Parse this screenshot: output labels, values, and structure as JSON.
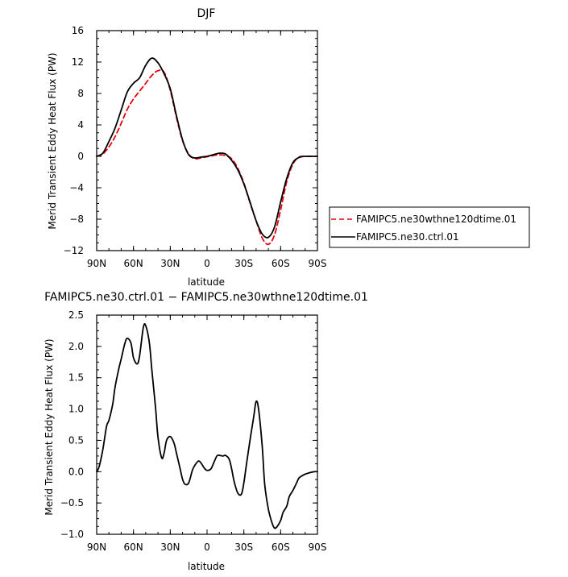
{
  "chart_data": [
    {
      "type": "line",
      "title": "DJF",
      "xlabel": "latitude",
      "ylabel": "Merid Transient Eddy Heat Flux (PW)",
      "xlim": [
        90,
        -90
      ],
      "ylim": [
        -12,
        16
      ],
      "xticks": [
        90,
        60,
        30,
        0,
        -30,
        -60,
        -90
      ],
      "xtick_labels": [
        "90N",
        "60N",
        "30N",
        "0",
        "30S",
        "60S",
        "90S"
      ],
      "yticks": [
        -12,
        -8,
        -4,
        0,
        4,
        8,
        12,
        16
      ],
      "ytick_labels": [
        "−12",
        "−8",
        "−4",
        "0",
        "4",
        "8",
        "12",
        "16"
      ],
      "legend_position": "right",
      "series": [
        {
          "name": "FAMIPC5.ne30wthne120dtime.01",
          "color": "#e8000b",
          "dash": "dashed",
          "x": [
            90,
            85,
            80,
            75,
            70,
            65,
            60,
            55,
            50,
            45,
            40,
            35,
            30,
            25,
            20,
            15,
            10,
            5,
            0,
            -5,
            -10,
            -15,
            -20,
            -25,
            -30,
            -35,
            -40,
            -45,
            -50,
            -55,
            -60,
            -65,
            -70,
            -75,
            -80,
            -85,
            -90
          ],
          "y": [
            0.0,
            0.3,
            1.2,
            2.5,
            4.2,
            6.0,
            7.3,
            8.3,
            9.3,
            10.3,
            10.9,
            10.7,
            8.4,
            5.0,
            2.0,
            0.3,
            -0.3,
            -0.2,
            -0.05,
            0.1,
            0.2,
            0.1,
            -0.3,
            -1.5,
            -3.4,
            -5.9,
            -8.2,
            -10.4,
            -11.2,
            -10.0,
            -6.8,
            -3.2,
            -1.0,
            -0.1,
            0.0,
            0.0,
            0.0
          ]
        },
        {
          "name": "FAMIPC5.ne30.ctrl.01",
          "color": "#000000",
          "dash": "solid",
          "x": [
            90,
            85,
            80,
            75,
            70,
            65,
            60,
            55,
            50,
            45,
            40,
            35,
            30,
            25,
            20,
            15,
            10,
            5,
            0,
            -5,
            -10,
            -15,
            -20,
            -25,
            -30,
            -35,
            -40,
            -45,
            -50,
            -55,
            -60,
            -65,
            -70,
            -75,
            -80,
            -85,
            -90
          ],
          "y": [
            0.0,
            0.4,
            1.9,
            3.6,
            5.9,
            8.2,
            9.3,
            10.0,
            11.6,
            12.5,
            11.9,
            10.5,
            8.6,
            5.2,
            2.1,
            0.2,
            -0.2,
            -0.1,
            0.0,
            0.2,
            0.4,
            0.3,
            -0.5,
            -1.7,
            -3.5,
            -5.8,
            -8.2,
            -9.9,
            -10.3,
            -9.0,
            -5.8,
            -2.8,
            -0.8,
            -0.15,
            0.0,
            0.0,
            0.0
          ]
        }
      ]
    },
    {
      "type": "line",
      "title": "FAMIPC5.ne30.ctrl.01 − FAMIPC5.ne30wthne120dtime.01",
      "xlabel": "latitude",
      "ylabel": "Merid Transient Eddy Heat Flux (PW)",
      "xlim": [
        90,
        -90
      ],
      "ylim": [
        -1.0,
        2.5
      ],
      "xticks": [
        90,
        60,
        30,
        0,
        -30,
        -60,
        -90
      ],
      "xtick_labels": [
        "90N",
        "60N",
        "30N",
        "0",
        "30S",
        "60S",
        "90S"
      ],
      "yticks": [
        -1.0,
        -0.5,
        0.0,
        0.5,
        1.0,
        1.5,
        2.0,
        2.5
      ],
      "ytick_labels": [
        "−1.0",
        "−0.5",
        "0.0",
        "0.5",
        "1.0",
        "1.5",
        "2.0",
        "2.5"
      ],
      "series": [
        {
          "color": "#000000",
          "dash": "solid",
          "x": [
            90,
            88,
            85,
            82,
            80,
            77,
            75,
            72,
            70,
            67,
            65,
            62,
            60,
            57,
            55,
            52,
            50,
            47,
            45,
            42,
            40,
            37,
            35,
            33,
            30,
            27,
            25,
            22,
            20,
            18,
            15,
            12,
            10,
            7,
            5,
            2,
            0,
            -3,
            -5,
            -8,
            -10,
            -13,
            -15,
            -18,
            -20,
            -22,
            -25,
            -28,
            -30,
            -32,
            -35,
            -38,
            -40,
            -42,
            -45,
            -47,
            -50,
            -53,
            -55,
            -57,
            -60,
            -62,
            -65,
            -67,
            -70,
            -73,
            -75,
            -78,
            -80,
            -83,
            -85,
            -88,
            -90
          ],
          "y": [
            0.0,
            0.08,
            0.35,
            0.72,
            0.82,
            1.07,
            1.35,
            1.64,
            1.8,
            2.05,
            2.13,
            2.05,
            1.82,
            1.72,
            1.85,
            2.3,
            2.33,
            2.05,
            1.62,
            1.02,
            0.55,
            0.22,
            0.3,
            0.5,
            0.56,
            0.46,
            0.3,
            0.05,
            -0.12,
            -0.2,
            -0.18,
            0.02,
            0.1,
            0.17,
            0.14,
            0.05,
            0.02,
            0.04,
            0.12,
            0.25,
            0.26,
            0.25,
            0.26,
            0.2,
            0.05,
            -0.15,
            -0.34,
            -0.36,
            -0.18,
            0.1,
            0.5,
            0.87,
            1.12,
            1.0,
            0.4,
            -0.2,
            -0.6,
            -0.82,
            -0.9,
            -0.88,
            -0.78,
            -0.65,
            -0.55,
            -0.4,
            -0.3,
            -0.18,
            -0.1,
            -0.06,
            -0.04,
            -0.02,
            -0.01,
            0.0,
            0.0
          ]
        }
      ]
    }
  ]
}
